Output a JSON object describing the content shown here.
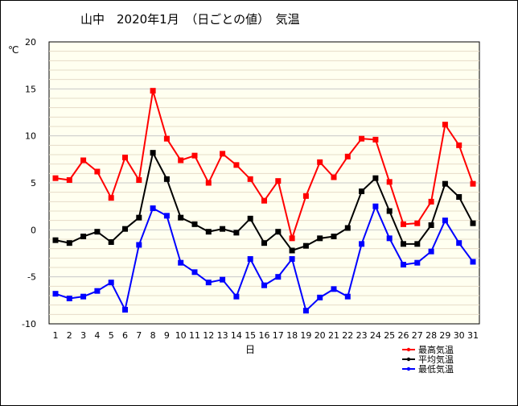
{
  "title": "山中　2020年1月　（日ごとの値）　気温",
  "chart_data": {
    "type": "line",
    "x": [
      1,
      2,
      3,
      4,
      5,
      6,
      7,
      8,
      9,
      10,
      11,
      12,
      13,
      14,
      15,
      16,
      17,
      18,
      19,
      20,
      21,
      22,
      23,
      24,
      25,
      26,
      27,
      28,
      29,
      30,
      31
    ],
    "xlabel": "日",
    "ylabel": "℃",
    "ylim": [
      -10,
      20
    ],
    "yticks": [
      -10,
      -5,
      0,
      5,
      10,
      15,
      20
    ],
    "grid": true,
    "legend_position": "bottom-right",
    "series": [
      {
        "name": "最高気温",
        "color": "#ff0000",
        "values": [
          5.5,
          5.3,
          7.4,
          6.2,
          3.4,
          7.7,
          5.3,
          14.8,
          9.7,
          7.4,
          7.9,
          5.0,
          8.1,
          6.9,
          5.4,
          3.1,
          5.2,
          -0.9,
          3.6,
          7.2,
          5.6,
          7.8,
          9.7,
          9.6,
          5.1,
          0.6,
          0.7,
          3.0,
          11.2,
          9.0,
          4.9
        ]
      },
      {
        "name": "平均気温",
        "color": "#000000",
        "values": [
          -1.1,
          -1.4,
          -0.7,
          -0.2,
          -1.3,
          0.1,
          1.3,
          8.2,
          5.4,
          1.3,
          0.6,
          -0.2,
          0.1,
          -0.3,
          1.2,
          -1.4,
          -0.2,
          -2.2,
          -1.7,
          -0.9,
          -0.7,
          0.2,
          4.1,
          5.5,
          2.0,
          -1.5,
          -1.5,
          0.5,
          4.9,
          3.5,
          0.7
        ]
      },
      {
        "name": "最低気温",
        "color": "#0000ff",
        "values": [
          -6.8,
          -7.3,
          -7.1,
          -6.5,
          -5.6,
          -8.5,
          -1.6,
          2.3,
          1.5,
          -3.5,
          -4.5,
          -5.6,
          -5.3,
          -7.1,
          -3.1,
          -5.9,
          -5.0,
          -3.1,
          -8.6,
          -7.2,
          -6.3,
          -7.1,
          -1.5,
          2.5,
          -0.9,
          -3.7,
          -3.5,
          -2.3,
          1.0,
          -1.4,
          -3.4
        ]
      }
    ]
  }
}
